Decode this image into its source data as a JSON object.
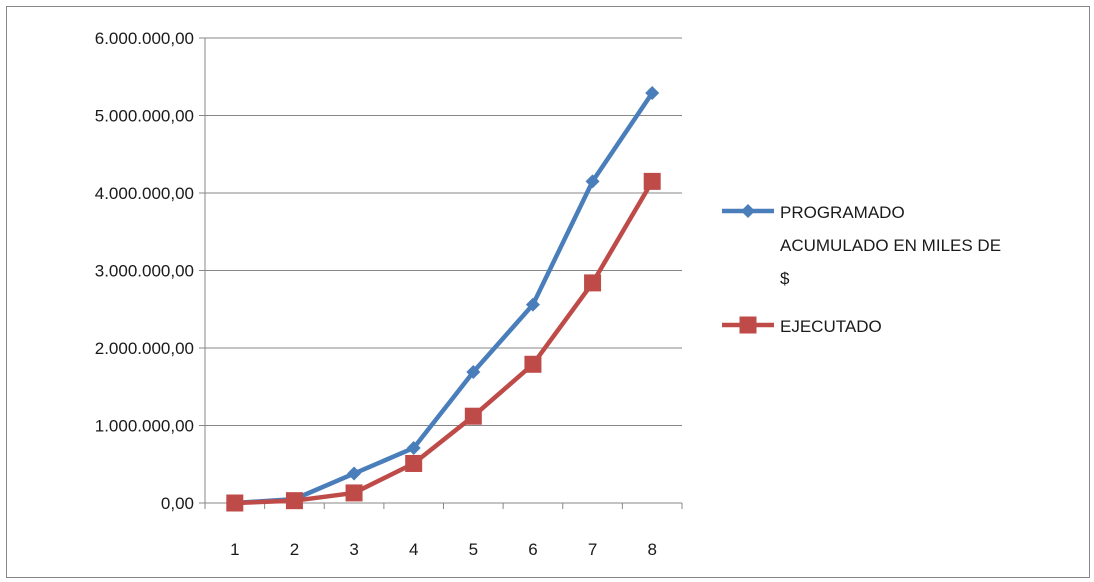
{
  "chart_data": {
    "type": "line",
    "title": "",
    "xlabel": "",
    "ylabel": "",
    "categories": [
      "1",
      "2",
      "3",
      "4",
      "5",
      "6",
      "7",
      "8"
    ],
    "yticks": [
      "0,00",
      "1.000.000,00",
      "2.000.000,00",
      "3.000.000,00",
      "4.000.000,00",
      "5.000.000,00",
      "6.000.000,00"
    ],
    "ylim": [
      0,
      6000000
    ],
    "grid": true,
    "legend_position": "right",
    "series": [
      {
        "name": "PROGRAMADO ACUMULADO EN MILES DE $",
        "legend_lines": [
          "PROGRAMADO",
          "ACUMULADO EN MILES DE",
          "$"
        ],
        "color": "#4a7ebb",
        "marker": "diamond",
        "values": [
          0,
          50000,
          380000,
          710000,
          1690000,
          2560000,
          4150000,
          5290000
        ]
      },
      {
        "name": "EJECUTADO",
        "legend_lines": [
          "EJECUTADO"
        ],
        "color": "#be4b48",
        "marker": "square",
        "values": [
          0,
          30000,
          130000,
          510000,
          1120000,
          1790000,
          2840000,
          4150000
        ]
      }
    ]
  }
}
